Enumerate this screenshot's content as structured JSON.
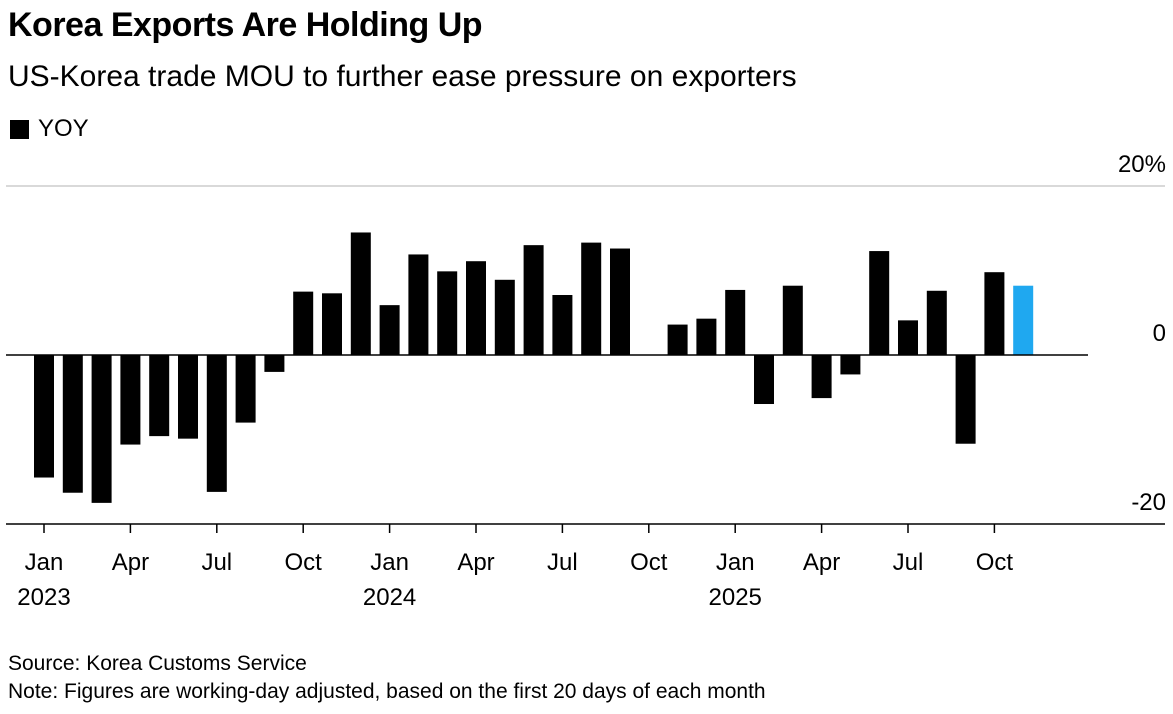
{
  "title": "Korea Exports Are Holding Up",
  "subtitle": "US-Korea trade MOU to further ease pressure on exporters",
  "colors": {
    "bar": "#000000",
    "highlight": "#1fa8f0",
    "grid": "#d9d9d9"
  },
  "chart_data": {
    "type": "bar",
    "series": [
      {
        "name": "YOY",
        "x": [
          "2023-01",
          "2023-02",
          "2023-03",
          "2023-04",
          "2023-05",
          "2023-06",
          "2023-07",
          "2023-08",
          "2023-09",
          "2023-10",
          "2023-11",
          "2023-12",
          "2024-01",
          "2024-02",
          "2024-03",
          "2024-04",
          "2024-05",
          "2024-06",
          "2024-07",
          "2024-08",
          "2024-09",
          "2024-10",
          "2024-11",
          "2024-12",
          "2025-01",
          "2025-02",
          "2025-03",
          "2025-04",
          "2025-05",
          "2025-06",
          "2025-07",
          "2025-08",
          "2025-09",
          "2025-10",
          "2025-11"
        ],
        "values": [
          -14.5,
          -16.3,
          -17.5,
          -10.6,
          -9.6,
          -9.9,
          -16.2,
          -8.0,
          -2.0,
          7.5,
          7.3,
          14.5,
          5.9,
          11.9,
          9.9,
          11.1,
          8.9,
          13.0,
          7.1,
          13.3,
          12.6,
          0.0,
          3.6,
          4.3,
          7.7,
          -5.8,
          8.2,
          -5.1,
          -2.3,
          12.3,
          4.1,
          7.6,
          -10.5,
          9.8,
          8.2
        ],
        "highlight_last": true
      }
    ],
    "ylim": [
      -20,
      20
    ],
    "yticks": [
      {
        "value": 20,
        "label": "20%"
      },
      {
        "value": 0,
        "label": "0"
      },
      {
        "value": -20,
        "label": "-20"
      }
    ],
    "xticks": [
      {
        "index": 0,
        "label": "Jan",
        "year": "2023"
      },
      {
        "index": 3,
        "label": "Apr",
        "year": ""
      },
      {
        "index": 6,
        "label": "Jul",
        "year": ""
      },
      {
        "index": 9,
        "label": "Oct",
        "year": ""
      },
      {
        "index": 12,
        "label": "Jan",
        "year": "2024"
      },
      {
        "index": 15,
        "label": "Apr",
        "year": ""
      },
      {
        "index": 18,
        "label": "Jul",
        "year": ""
      },
      {
        "index": 21,
        "label": "Oct",
        "year": ""
      },
      {
        "index": 24,
        "label": "Jan",
        "year": "2025"
      },
      {
        "index": 27,
        "label": "Apr",
        "year": ""
      },
      {
        "index": 30,
        "label": "Jul",
        "year": ""
      },
      {
        "index": 33,
        "label": "Oct",
        "year": ""
      }
    ],
    "grid": true,
    "legend": "top-left"
  },
  "source": "Source: Korea Customs Service",
  "note": "Note: Figures are working-day adjusted, based on the first 20 days of each month"
}
